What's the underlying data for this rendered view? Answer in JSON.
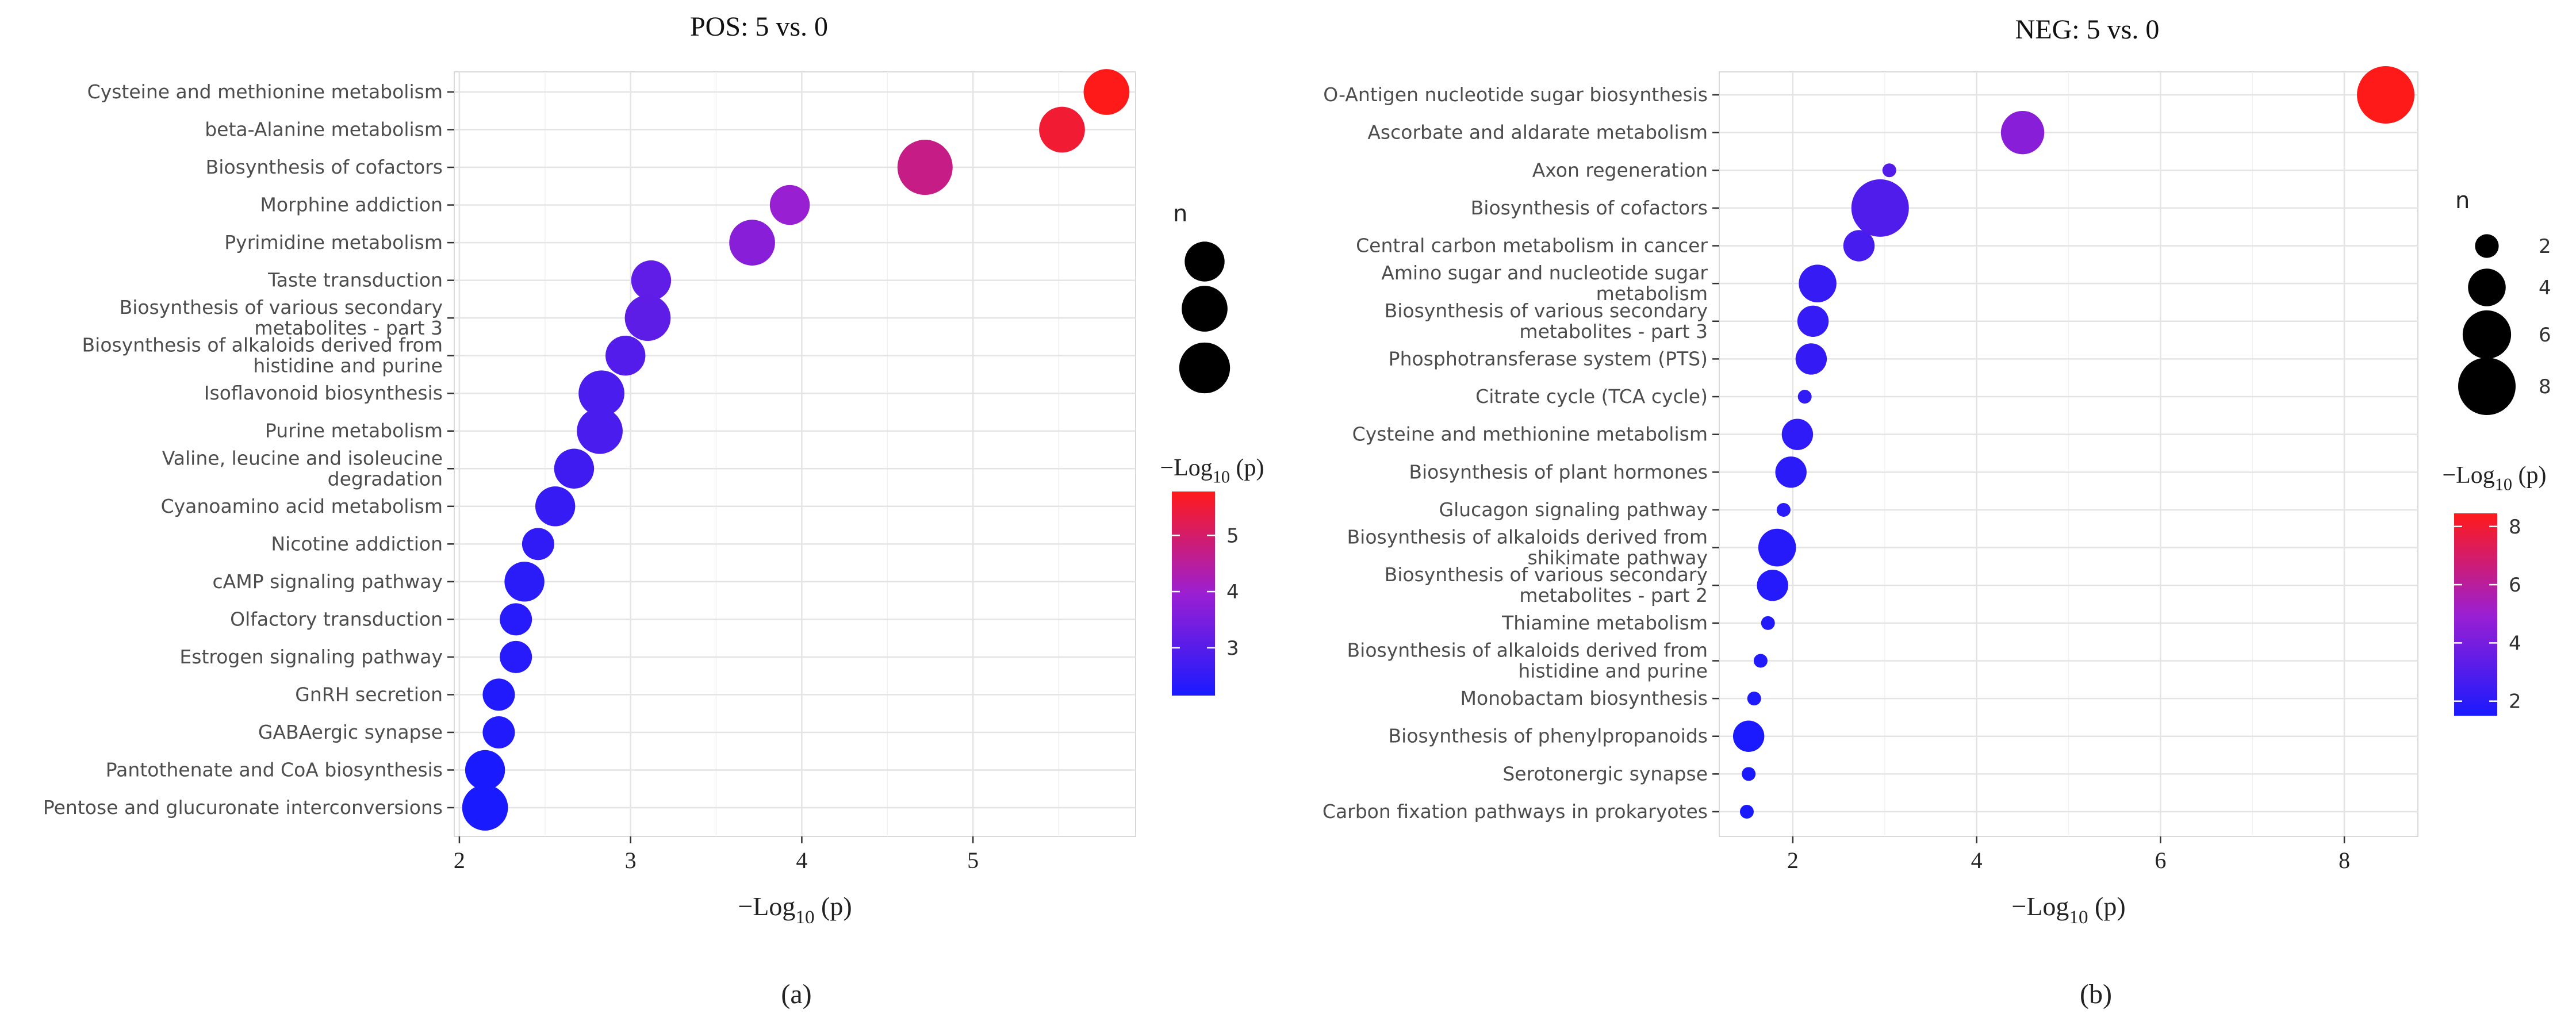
{
  "chart_data": [
    {
      "id": "a",
      "type": "scatter",
      "title": "POS: 5 vs. 0",
      "xlabel": {
        "base": "−Log",
        "sub": "10",
        "tail": " (p)"
      },
      "panel_label": "(a)",
      "xlim": [
        1.97,
        5.95
      ],
      "xticks": [
        2,
        3,
        4,
        5
      ],
      "categories": [
        "Cysteine and methionine metabolism",
        "beta-Alanine metabolism",
        "Biosynthesis of cofactors",
        "Morphine addiction",
        "Pyrimidine metabolism",
        "Taste transduction",
        "Biosynthesis of various secondary\nmetabolites - part 3",
        "Biosynthesis of alkaloids derived from\nhistidine and purine",
        "Isoflavonoid biosynthesis",
        "Purine metabolism",
        "Valine, leucine and isoleucine\ndegradation",
        "Cyanoamino acid metabolism",
        "Nicotine addiction",
        "cAMP signaling pathway",
        "Olfactory transduction",
        "Estrogen signaling pathway",
        "GnRH secretion",
        "GABAergic synapse",
        "Pantothenate and CoA biosynthesis",
        "Pentose and glucuronate interconversions"
      ],
      "x": [
        5.78,
        5.52,
        4.72,
        3.93,
        3.71,
        3.12,
        3.1,
        2.97,
        2.83,
        2.82,
        2.67,
        2.56,
        2.46,
        2.38,
        2.33,
        2.33,
        2.23,
        2.23,
        2.15,
        2.15
      ],
      "n": [
        3,
        3,
        5,
        2,
        3,
        2,
        3,
        2,
        3,
        3,
        2,
        2,
        1,
        2,
        1,
        1,
        1,
        1,
        2,
        3
      ],
      "size_legend": {
        "title": "n",
        "levels": [
          2,
          3,
          4
        ],
        "labels": [
          "",
          "",
          ""
        ]
      },
      "color_legend": {
        "title": {
          "base": "−Log",
          "sub": "10",
          "tail": " (p)"
        },
        "min": 2.15,
        "max": 5.78,
        "ticks": [
          3,
          4,
          5
        ],
        "low_color": "#1a1aff",
        "mid_color": "#9b1fd2",
        "high_color": "#ff1a1a"
      }
    },
    {
      "id": "b",
      "type": "scatter",
      "title": "NEG: 5 vs. 0",
      "xlabel": {
        "base": "−Log",
        "sub": "10",
        "tail": " (p)"
      },
      "panel_label": "(b)",
      "xlim": [
        1.2,
        8.8
      ],
      "xticks": [
        2,
        4,
        6,
        8
      ],
      "categories": [
        "O-Antigen nucleotide sugar biosynthesis",
        "Ascorbate and aldarate metabolism",
        "Axon regeneration",
        "Biosynthesis of cofactors",
        "Central carbon metabolism in cancer",
        "Amino sugar and nucleotide sugar\nmetabolism",
        "Biosynthesis of various secondary\nmetabolites - part 3",
        "Phosphotransferase system (PTS)",
        "Citrate cycle (TCA cycle)",
        "Cysteine and methionine metabolism",
        "Biosynthesis of plant hormones",
        "Glucagon signaling pathway",
        "Biosynthesis of alkaloids derived from\nshikimate pathway",
        "Biosynthesis of various secondary\nmetabolites - part 2",
        "Thiamine metabolism",
        "Biosynthesis of alkaloids derived from\nhistidine and purine",
        "Monobactam biosynthesis",
        "Biosynthesis of phenylpropanoids",
        "Serotonergic synapse",
        "Carbon fixation pathways in prokaryotes"
      ],
      "x": [
        8.45,
        4.5,
        3.05,
        2.95,
        2.72,
        2.27,
        2.22,
        2.2,
        2.13,
        2.05,
        1.98,
        1.9,
        1.83,
        1.78,
        1.73,
        1.65,
        1.58,
        1.52,
        1.52,
        1.5
      ],
      "n": [
        8,
        5,
        1,
        8,
        3,
        4,
        3,
        3,
        1,
        3,
        3,
        1,
        4,
        3,
        1,
        1,
        1,
        3,
        1,
        1
      ],
      "size_legend": {
        "title": "n",
        "levels": [
          2,
          4,
          6,
          8
        ],
        "labels": [
          "2",
          "4",
          "6",
          "8"
        ]
      },
      "color_legend": {
        "title": {
          "base": "−Log",
          "sub": "10",
          "tail": " (p)"
        },
        "min": 1.5,
        "max": 8.45,
        "ticks": [
          2,
          4,
          6,
          8
        ],
        "low_color": "#1a1aff",
        "mid_color": "#9b1fd2",
        "high_color": "#ff1a1a"
      }
    }
  ]
}
